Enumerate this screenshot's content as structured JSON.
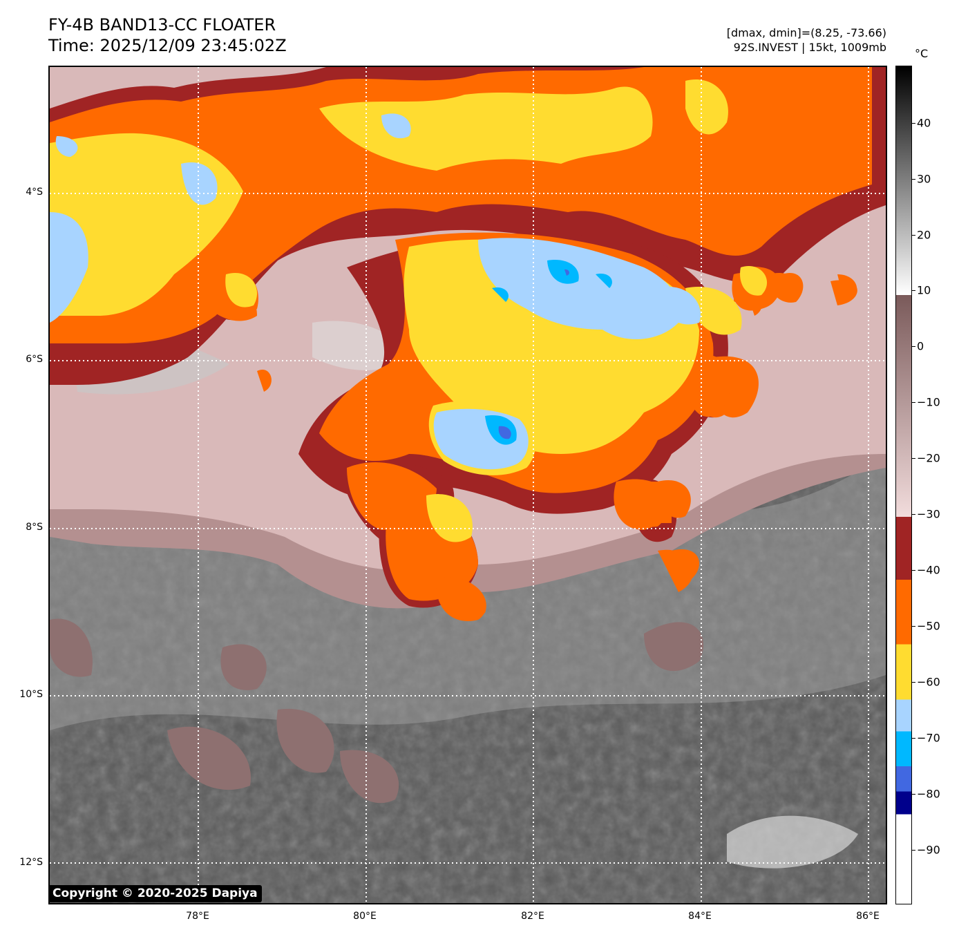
{
  "title": {
    "line1": "FY-4B BAND13-CC FLOATER",
    "line2": "Time: 2025/12/09 23:45:02Z"
  },
  "info": {
    "line1": "[dmax, dmin]=(8.25, -73.66)",
    "line2": "92S.INVEST | 15kt, 1009mb"
  },
  "lat_labels": [
    "4°S",
    "6°S",
    "8°S",
    "10°S",
    "12°S"
  ],
  "lon_labels": [
    "78°E",
    "80°E",
    "82°E",
    "84°E",
    "86°E"
  ],
  "colorbar": {
    "unit": "°C",
    "labels": [
      "40",
      "30",
      "20",
      "10",
      "0",
      "−10",
      "−20",
      "−30",
      "−40",
      "−50",
      "−60",
      "−70",
      "−80",
      "−90"
    ],
    "colors": {
      "warm_gray_top": "#000000",
      "warm_gray_bottom": "#ffffff",
      "brown_top": "#7a5a5a",
      "brown_bottom": "#f2dcdc",
      "dark_red": "#a02424",
      "orange": "#ff6a00",
      "yellow": "#ffdc30",
      "light_blue": "#a8d4ff",
      "cyan": "#00b8ff",
      "royal_blue": "#4168e1",
      "navy": "#00008c",
      "white_min": "#ffffff"
    }
  },
  "copyright": "Copyright © 2020-2025 Dapiya"
}
